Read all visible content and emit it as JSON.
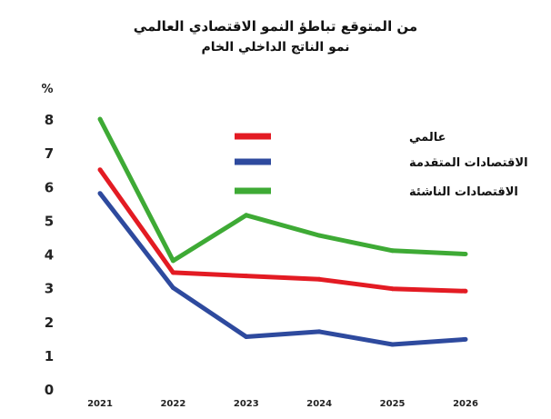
{
  "chart_data": {
    "type": "line",
    "title": "من المتوقع تباطؤ النمو الاقتصادي العالمي",
    "subtitle": "نمو الناتج الداخلي الخام",
    "ylabel": "%",
    "xlabel": "",
    "x": [
      "2021",
      "2022",
      "2023",
      "2024",
      "2025",
      "2026"
    ],
    "y_ticks": [
      "0",
      "1",
      "2",
      "3",
      "4",
      "5",
      "6",
      "7",
      "8"
    ],
    "ylim": [
      0,
      8
    ],
    "grid": false,
    "legend_position": "top-right",
    "series": [
      {
        "name": "عالمي",
        "color": "#e31b23",
        "values": [
          6.5,
          3.45,
          3.35,
          3.25,
          2.97,
          2.9
        ]
      },
      {
        "name": "الاقتصادات المتقدمة",
        "color": "#2e4a9e",
        "values": [
          5.8,
          3.0,
          1.55,
          1.7,
          1.32,
          1.47
        ]
      },
      {
        "name": "الاقتصادات الناشئة",
        "color": "#3eaa35",
        "values": [
          8.0,
          3.8,
          5.15,
          4.55,
          4.1,
          4.0
        ]
      }
    ]
  }
}
